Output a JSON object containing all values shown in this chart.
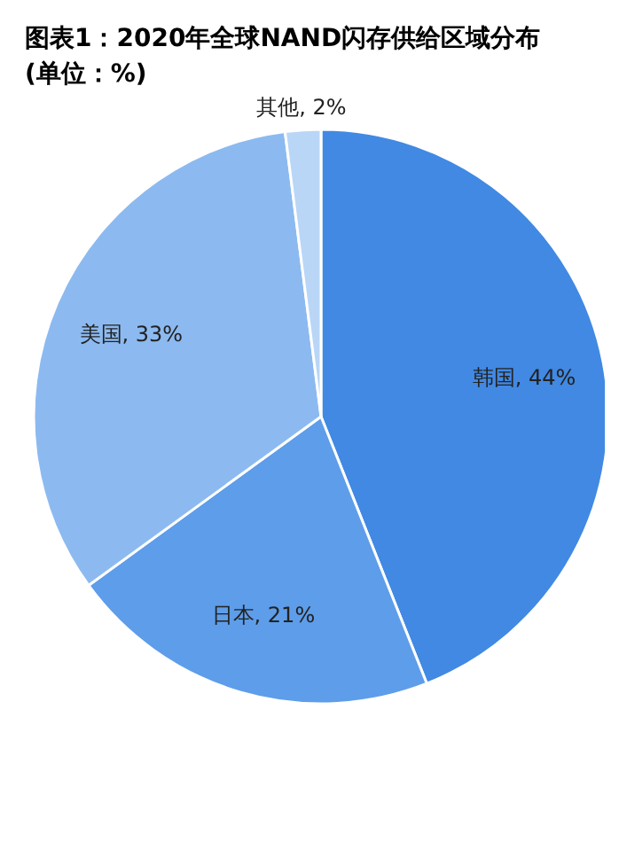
{
  "chart_data": {
    "type": "pie",
    "title": "图表1：2020年全球NAND闪存供给区域分布(单位：%)",
    "categories": [
      "韩国",
      "日本",
      "美国",
      "其他"
    ],
    "values": [
      44,
      21,
      33,
      2
    ],
    "value_labels": [
      "44%",
      "21%",
      "33%",
      "2%"
    ],
    "colors": [
      "#4189e3",
      "#5e9de9",
      "#8cbaf0",
      "#b9d6f6"
    ]
  }
}
